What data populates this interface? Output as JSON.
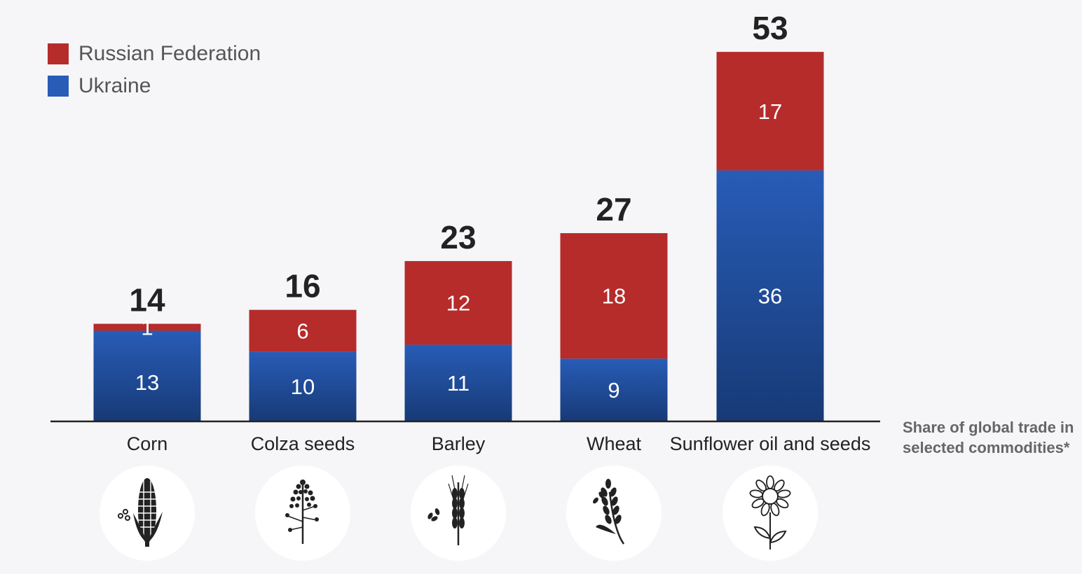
{
  "colors": {
    "russia": "#b52c2b",
    "ukraine": "#285cb7",
    "ukraine_dark": "#173a76",
    "text_dark": "#222222",
    "text_gray": "#555555"
  },
  "legend": [
    {
      "label": "Russian Federation",
      "color": "#b52c2b"
    },
    {
      "label": "Ukraine",
      "color": "#285cb7"
    }
  ],
  "note": "Share of global trade in\nselected commodities*",
  "chart_data": {
    "type": "bar",
    "stacked": true,
    "categories": [
      "Corn",
      "Colza seeds",
      "Barley",
      "Wheat",
      "Sunflower oil and seeds"
    ],
    "series": [
      {
        "name": "Ukraine",
        "values": [
          13,
          10,
          11,
          9,
          36
        ]
      },
      {
        "name": "Russian Federation",
        "values": [
          1,
          6,
          12,
          18,
          17
        ]
      }
    ],
    "totals": [
      14,
      16,
      23,
      27,
      53
    ],
    "icons": [
      "corn-icon",
      "colza-icon",
      "barley-icon",
      "wheat-icon",
      "sunflower-icon"
    ],
    "legend_position": "top-left",
    "grid": false
  }
}
